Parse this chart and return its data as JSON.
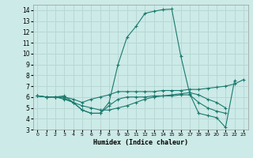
{
  "xlabel": "Humidex (Indice chaleur)",
  "bg_color": "#cceae7",
  "grid_color": "#b8d8d5",
  "line_color": "#1a7a6e",
  "xlim": [
    -0.5,
    23.5
  ],
  "ylim": [
    3,
    14.5
  ],
  "x_ticks": [
    0,
    1,
    2,
    3,
    4,
    5,
    6,
    7,
    8,
    9,
    10,
    11,
    12,
    13,
    14,
    15,
    16,
    17,
    18,
    19,
    20,
    21,
    22,
    23
  ],
  "y_ticks": [
    3,
    4,
    5,
    6,
    7,
    8,
    9,
    10,
    11,
    12,
    13,
    14
  ],
  "series": [
    [
      6.1,
      6.0,
      6.0,
      6.1,
      5.5,
      4.8,
      4.5,
      4.5,
      5.5,
      9.0,
      11.5,
      12.5,
      13.7,
      13.9,
      14.05,
      14.1,
      9.8,
      6.3,
      4.5,
      4.3,
      4.1,
      3.2,
      7.5,
      null
    ],
    [
      6.1,
      6.0,
      6.0,
      6.0,
      5.8,
      5.5,
      5.8,
      6.0,
      6.2,
      6.5,
      6.5,
      6.5,
      6.5,
      6.5,
      6.6,
      6.6,
      6.6,
      6.7,
      6.7,
      6.8,
      6.9,
      7.0,
      7.2,
      7.6
    ],
    [
      6.1,
      6.0,
      6.0,
      5.9,
      5.5,
      4.8,
      4.5,
      4.5,
      5.2,
      5.8,
      6.0,
      6.0,
      6.0,
      6.1,
      6.1,
      6.1,
      6.2,
      6.2,
      5.5,
      5.0,
      4.7,
      4.5,
      null,
      null
    ],
    [
      6.1,
      6.0,
      6.0,
      5.8,
      5.5,
      5.2,
      5.0,
      4.8,
      4.8,
      5.0,
      5.2,
      5.5,
      5.8,
      6.0,
      6.1,
      6.2,
      6.3,
      6.4,
      6.2,
      5.8,
      5.5,
      5.0,
      null,
      null
    ]
  ]
}
